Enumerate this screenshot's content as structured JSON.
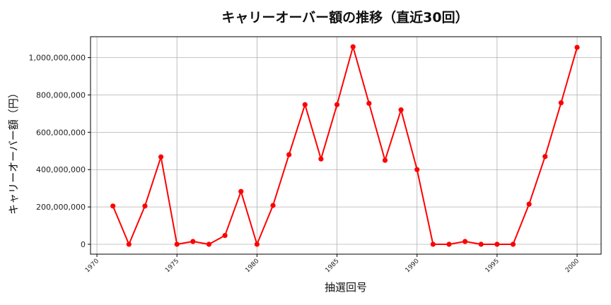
{
  "chart_data": {
    "type": "line",
    "title": "キャリーオーバー額の推移（直近30回）",
    "xlabel": "抽選回号",
    "ylabel": "キャリーオーバー額（円）",
    "x": [
      1971,
      1972,
      1973,
      1974,
      1975,
      1976,
      1977,
      1978,
      1979,
      1980,
      1981,
      1982,
      1983,
      1984,
      1985,
      1986,
      1987,
      1988,
      1989,
      1990,
      1991,
      1992,
      1993,
      1994,
      1995,
      1996,
      1997,
      1998,
      1999,
      2000
    ],
    "series": [
      {
        "color": "#ff0000",
        "marker": "circle",
        "values": [
          205000000,
          0,
          205000000,
          468000000,
          0,
          15000000,
          0,
          47000000,
          283000000,
          0,
          208000000,
          480000000,
          748000000,
          457000000,
          748000000,
          1058000000,
          755000000,
          450000000,
          720000000,
          400000000,
          0,
          0,
          15000000,
          0,
          0,
          0,
          215000000,
          470000000,
          758000000,
          1055000000
        ]
      }
    ],
    "xticks": [
      "1970",
      "1975",
      "1980",
      "1985",
      "1990",
      "1995",
      "2000"
    ],
    "yticks": [
      "0",
      "200,000,000",
      "400,000,000",
      "600,000,000",
      "800,000,000",
      "1,000,000,000"
    ],
    "xlim": [
      1969.6,
      2001.5
    ],
    "ylim": [
      -53000000,
      1112000000
    ],
    "grid": true,
    "legend": "none"
  }
}
